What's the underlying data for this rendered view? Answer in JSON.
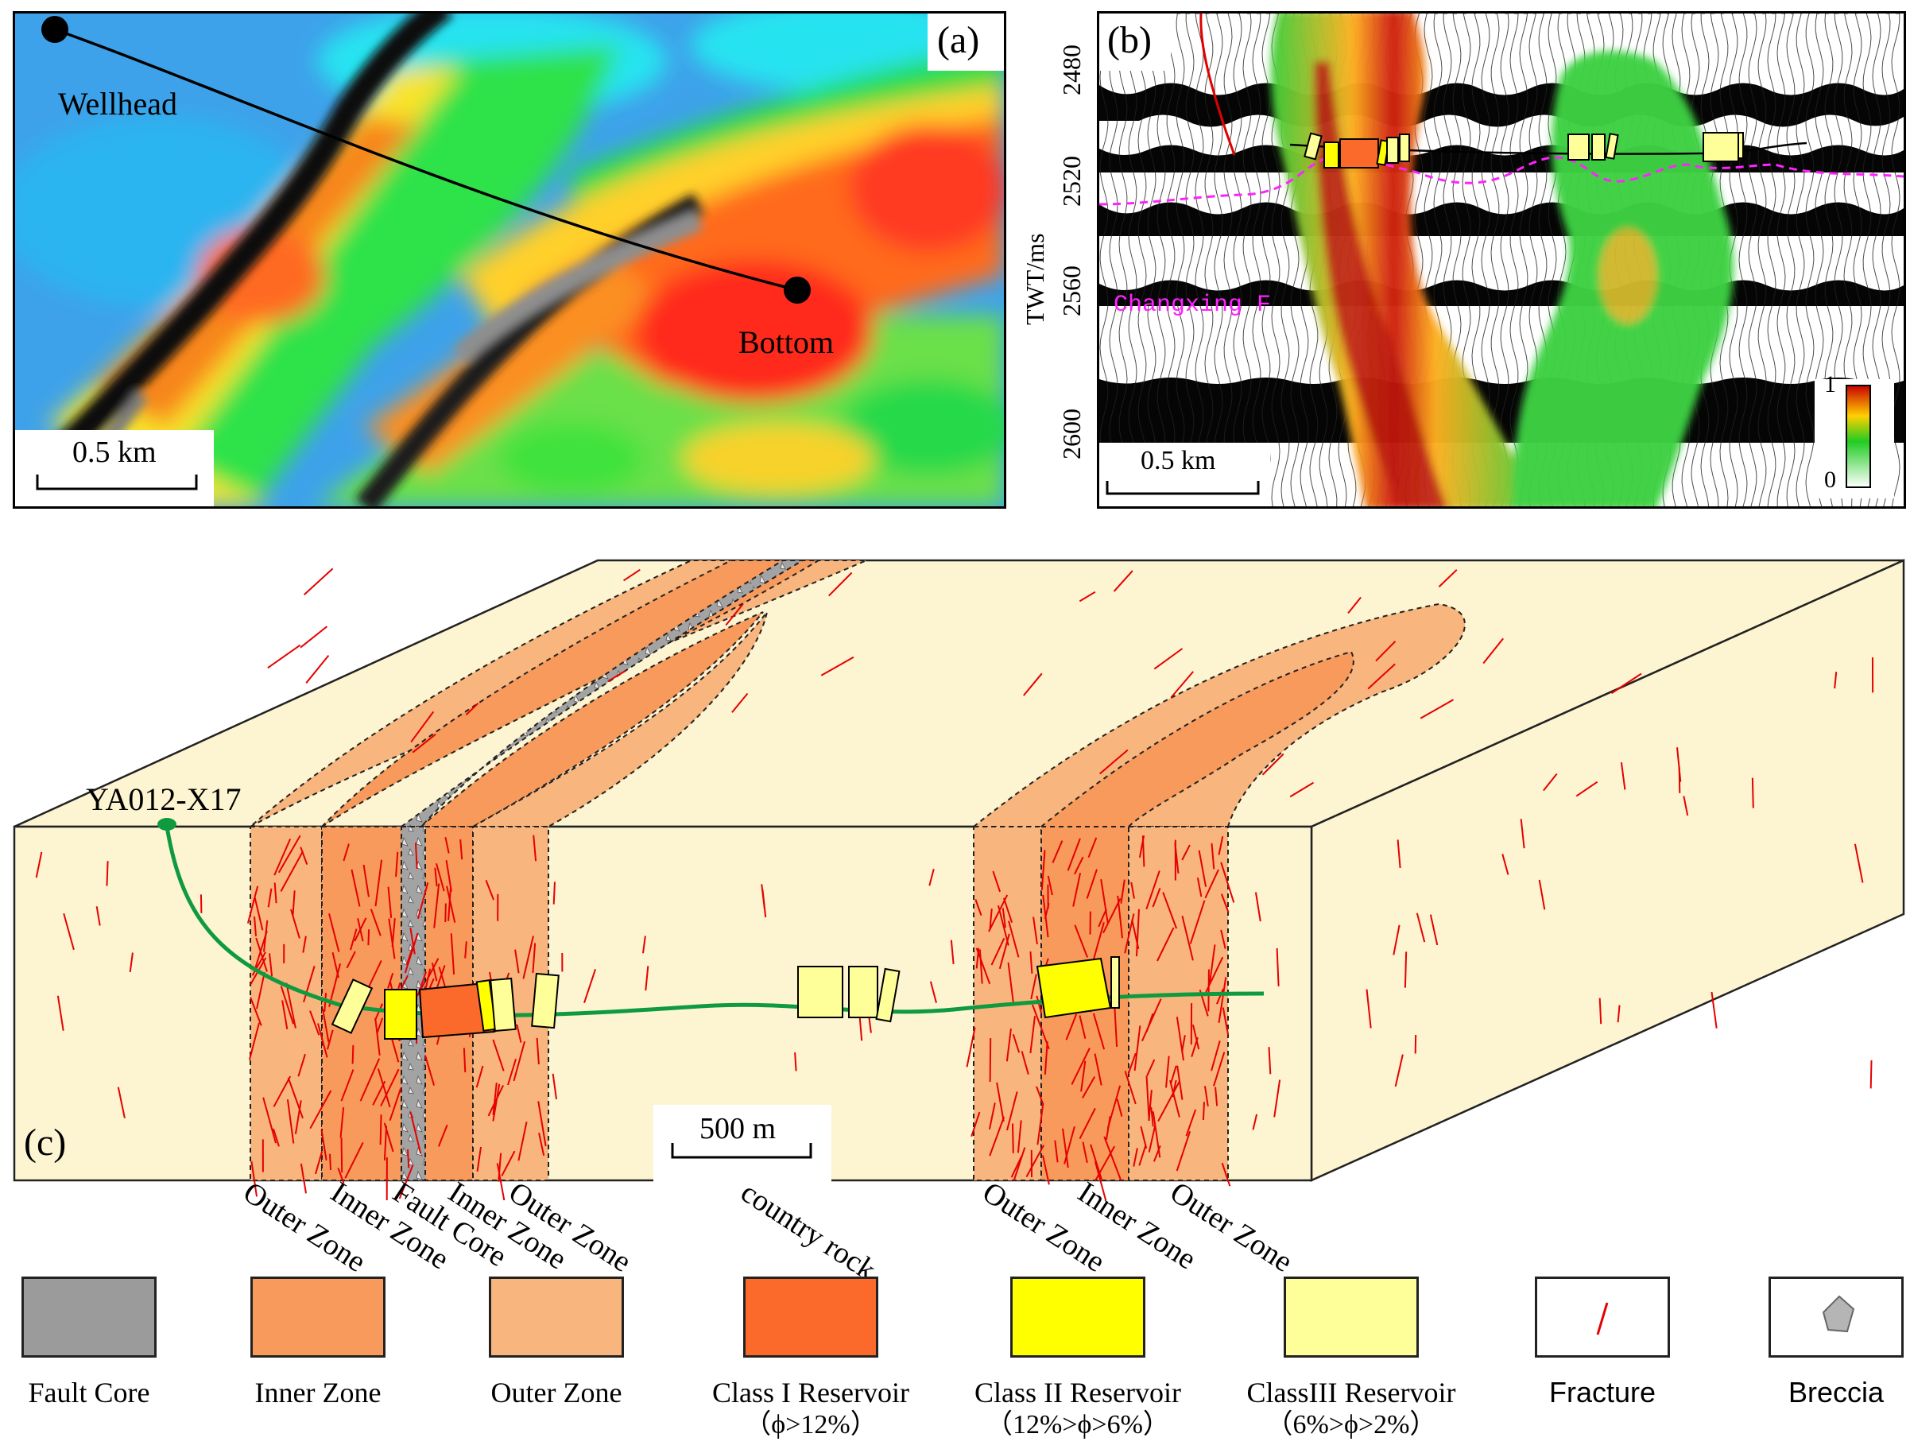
{
  "panel_a": {
    "letter": "(a)",
    "wellhead_label": "Wellhead",
    "bottom_label": "Bottom",
    "scale_label": "0.5 km"
  },
  "panel_b": {
    "letter": "(b)",
    "axis_label": "TWT/ms",
    "ticks": [
      "2480",
      "2520",
      "2560",
      "2600"
    ],
    "horizon_label": "Changxing F",
    "scale_label": "0.5 km",
    "colorbar_max": "1",
    "colorbar_min": "0"
  },
  "panel_c": {
    "letter": "(c)",
    "well_label": "YA012-X17",
    "scale_label": "500 m",
    "zone_labels": [
      "Outer Zone",
      "Inner Zone",
      "Fault Core",
      "Inner Zone",
      "Outer Zone",
      "country rock",
      "Outer Zone",
      "Inner Zone",
      "Outer Zone"
    ]
  },
  "legend": [
    {
      "label": "Fault Core",
      "sub": "",
      "color": "#9b9b9b"
    },
    {
      "label": "Inner Zone",
      "sub": "",
      "color": "#f79a5c"
    },
    {
      "label": "Outer Zone",
      "sub": "",
      "color": "#f8b57e"
    },
    {
      "label": "Class I Reservoir",
      "sub": "（ϕ>12%）",
      "color": "#fb6a2b"
    },
    {
      "label": "Class II Reservoir",
      "sub": "（12%>ϕ>6%）",
      "color": "#ffff00"
    },
    {
      "label": "ClassIII Reservoir",
      "sub": "（6%>ϕ>2%）",
      "color": "#ffff99"
    },
    {
      "label": "Fracture",
      "sub": "",
      "color": "#e60000"
    },
    {
      "label": "Breccia",
      "sub": "",
      "color": "#b5b5b5"
    }
  ],
  "colors": {
    "country_rock": "#fdf4d2",
    "well_trace": "#109a40",
    "horizon": "#ff22ff"
  }
}
